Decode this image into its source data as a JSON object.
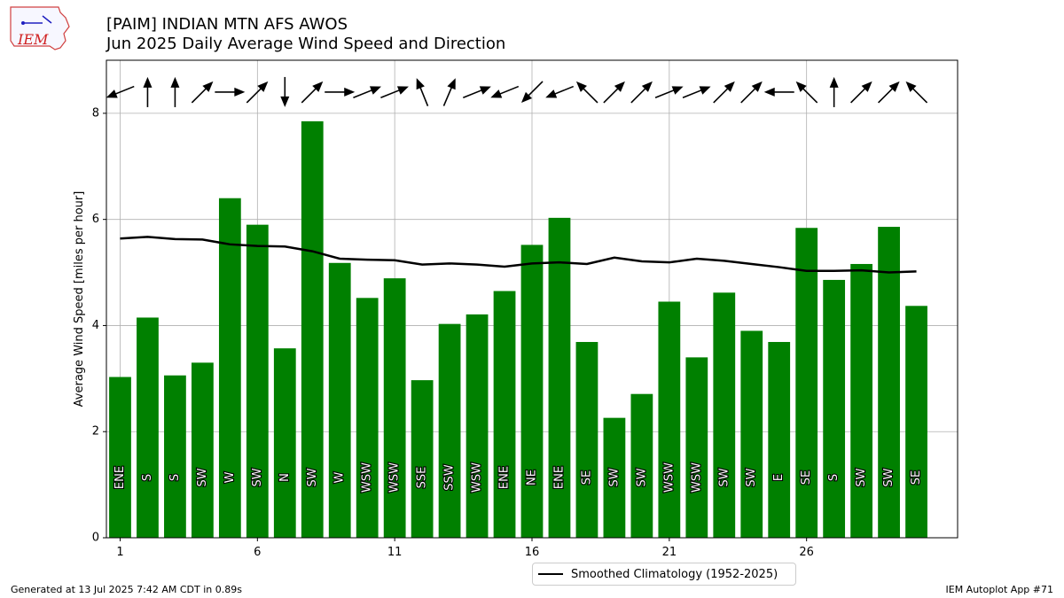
{
  "header": {
    "title_line1": "[PAIM] INDIAN MTN AFS AWOS",
    "title_line2": "Jun 2025 Daily Average Wind Speed and Direction",
    "logo_text": "IEM"
  },
  "footer": {
    "left": "Generated at 13 Jul 2025 7:42 AM CDT in 0.89s",
    "right": "IEM Autoplot App #71"
  },
  "colors": {
    "bar": "#008000",
    "climatology": "#000000",
    "grid": "#b0b0b0"
  },
  "chart_data": {
    "type": "bar",
    "ylabel": "Average Wind Speed [miles per hour]",
    "xlabel": "",
    "ylim": [
      0,
      9
    ],
    "xlim": [
      0.5,
      31.5
    ],
    "x_ticks": [
      1,
      6,
      11,
      16,
      21,
      26
    ],
    "y_ticks": [
      0,
      2,
      4,
      6,
      8
    ],
    "grid": true,
    "legend_position": "bottom-center",
    "days": [
      1,
      2,
      3,
      4,
      5,
      6,
      7,
      8,
      9,
      10,
      11,
      12,
      13,
      14,
      15,
      16,
      17,
      18,
      19,
      20,
      21,
      22,
      23,
      24,
      25,
      26,
      27,
      28,
      29,
      30
    ],
    "values": [
      3.03,
      4.15,
      3.06,
      3.3,
      6.4,
      5.9,
      3.57,
      7.85,
      5.18,
      4.52,
      4.89,
      2.97,
      4.03,
      4.21,
      4.65,
      5.52,
      6.03,
      3.69,
      2.26,
      2.71,
      4.45,
      3.4,
      4.62,
      3.9,
      3.69,
      5.84,
      4.86,
      5.16,
      5.86,
      4.37
    ],
    "direction_labels": [
      "ENE",
      "S",
      "S",
      "SW",
      "W",
      "SW",
      "N",
      "SW",
      "W",
      "WSW",
      "WSW",
      "SSE",
      "SSW",
      "WSW",
      "ENE",
      "NE",
      "ENE",
      "SE",
      "SW",
      "SW",
      "WSW",
      "WSW",
      "SW",
      "SW",
      "E",
      "SE",
      "S",
      "SW",
      "SW",
      "SE"
    ],
    "arrow_directions_deg": [
      68,
      180,
      180,
      225,
      270,
      225,
      0,
      225,
      270,
      248,
      248,
      158,
      203,
      248,
      68,
      45,
      68,
      135,
      225,
      225,
      248,
      248,
      225,
      225,
      90,
      135,
      180,
      225,
      225,
      135
    ],
    "series": [
      {
        "name": "Smoothed Climatology (1952-2025)",
        "type": "line",
        "values": [
          5.64,
          5.67,
          5.63,
          5.62,
          5.53,
          5.5,
          5.49,
          5.4,
          5.26,
          5.24,
          5.23,
          5.15,
          5.17,
          5.15,
          5.11,
          5.17,
          5.19,
          5.16,
          5.28,
          5.21,
          5.19,
          5.26,
          5.22,
          5.16,
          5.1,
          5.03,
          5.03,
          5.04,
          5.0,
          5.02
        ]
      }
    ]
  }
}
